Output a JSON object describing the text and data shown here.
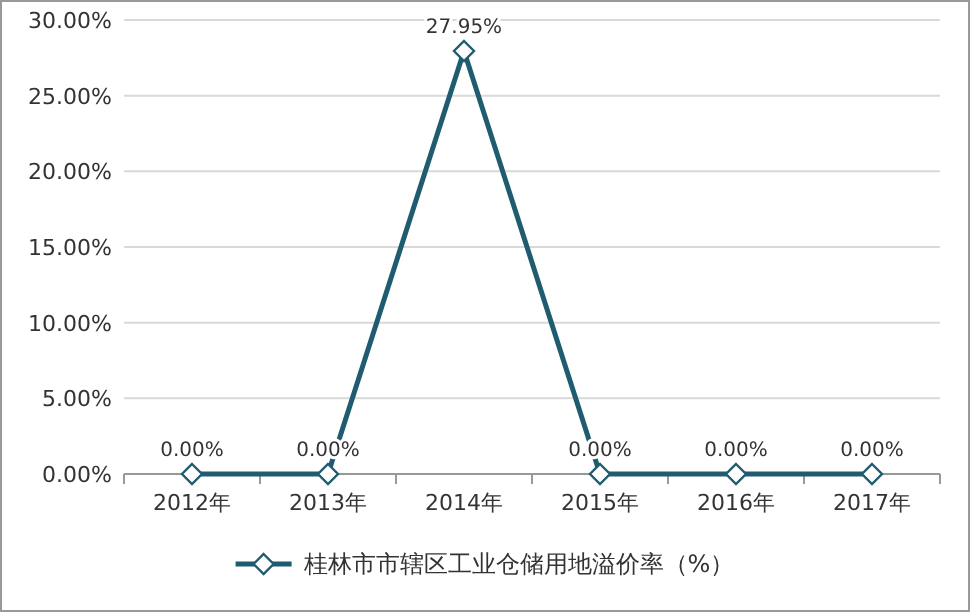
{
  "chart_data": {
    "type": "line",
    "categories": [
      "2012年",
      "2013年",
      "2014年",
      "2015年",
      "2016年",
      "2017年"
    ],
    "series": [
      {
        "name": "桂林市市辖区工业仓储用地溢价率（%）",
        "color": "#1f5c70",
        "values": [
          0,
          0,
          27.95,
          0,
          0,
          0
        ],
        "value_labels": [
          "0.00%",
          "0.00%",
          "27.95%",
          "0.00%",
          "0.00%",
          "0.00%"
        ]
      }
    ],
    "ylim": [
      0,
      30
    ],
    "yticks": [
      {
        "value": 0,
        "label": "0.00%"
      },
      {
        "value": 5,
        "label": "5.00%"
      },
      {
        "value": 10,
        "label": "10.00%"
      },
      {
        "value": 15,
        "label": "15.00%"
      },
      {
        "value": 20,
        "label": "20.00%"
      },
      {
        "value": 25,
        "label": "25.00%"
      },
      {
        "value": 30,
        "label": "30.00%"
      }
    ],
    "grid": "y",
    "legend": "bottom",
    "marker": "diamond",
    "line_style": "solid"
  }
}
